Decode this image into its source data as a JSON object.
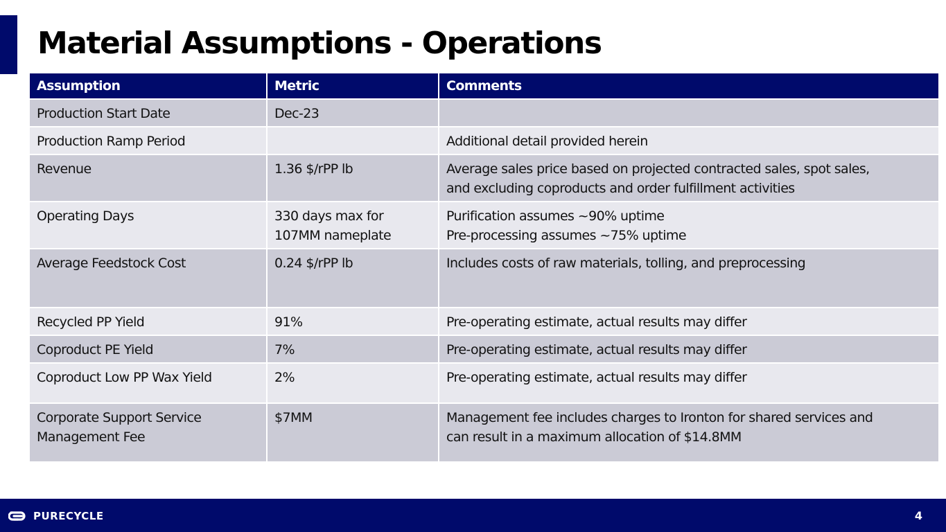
{
  "title": "Material Assumptions - Operations",
  "table": {
    "headers": [
      "Assumption",
      "Metric",
      "Comments"
    ],
    "rows": [
      {
        "assumption": [
          "Production Start Date"
        ],
        "metric": [
          "Dec-23"
        ],
        "comments": [
          ""
        ]
      },
      {
        "assumption": [
          "Production Ramp Period"
        ],
        "metric": [
          ""
        ],
        "comments": [
          "Additional detail provided herein"
        ]
      },
      {
        "assumption": [
          "Revenue"
        ],
        "metric": [
          "1.36 $/rPP lb"
        ],
        "comments": [
          "Average sales price based on projected contracted sales, spot sales,",
          "and excluding coproducts and order fulfillment activities"
        ]
      },
      {
        "assumption": [
          "Operating Days"
        ],
        "metric": [
          "330 days max for",
          "107MM nameplate"
        ],
        "comments": [
          "Purification assumes ~90% uptime",
          "Pre-processing assumes ~75% uptime"
        ]
      },
      {
        "assumption": [
          "Average Feedstock Cost"
        ],
        "metric": [
          "0.24 $/rPP lb"
        ],
        "comments": [
          "Includes costs of raw materials, tolling, and preprocessing"
        ]
      },
      {
        "assumption": [
          "Recycled PP Yield"
        ],
        "metric": [
          "91%"
        ],
        "comments": [
          "Pre-operating estimate, actual results may differ"
        ]
      },
      {
        "assumption": [
          "Coproduct PE Yield"
        ],
        "metric": [
          "7%"
        ],
        "comments": [
          "Pre-operating estimate, actual results may differ"
        ]
      },
      {
        "assumption": [
          "Coproduct Low PP Wax Yield"
        ],
        "metric": [
          "2%"
        ],
        "comments": [
          "Pre-operating estimate, actual results may differ"
        ]
      },
      {
        "assumption": [
          "Corporate Support Service",
          "Management Fee"
        ],
        "metric": [
          "$7MM"
        ],
        "comments": [
          "Management fee includes charges to Ironton for shared services and",
          "can result in a maximum allocation of $14.8MM"
        ]
      }
    ]
  },
  "footer": {
    "logo_text": "PURECYCLE",
    "logo_icon": "purecycle-logo-icon",
    "page_number": "4"
  },
  "colors": {
    "brand_navy": "#000a6b",
    "row_dark": "#cbcbd6",
    "row_light": "#e8e8ee"
  }
}
